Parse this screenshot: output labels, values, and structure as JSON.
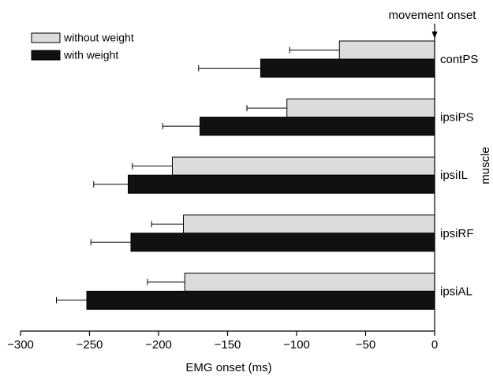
{
  "chart_data": {
    "type": "bar",
    "orientation": "horizontal",
    "categories": [
      "contPS",
      "ipsiPS",
      "ipsiIL",
      "ipsiRF",
      "ipsiAL"
    ],
    "series": [
      {
        "name": "without weight",
        "color": "#dcdcdc",
        "values": [
          -69,
          -107,
          -190,
          -182,
          -181
        ],
        "error": [
          36,
          29,
          29,
          23,
          27
        ]
      },
      {
        "name": "with weight",
        "color": "#111111",
        "values": [
          -126,
          -170,
          -222,
          -220,
          -252
        ],
        "error": [
          45,
          27,
          25,
          29,
          22
        ]
      }
    ],
    "xlabel": "EMG onset (ms)",
    "ylabel": "muscle",
    "xlim": [
      -300,
      0
    ],
    "xticks": [
      -300,
      -250,
      -200,
      -150,
      -100,
      -50,
      0
    ],
    "tick_labels": [
      "−300",
      "−250",
      "−200",
      "−150",
      "−100",
      "−50",
      "0"
    ],
    "annotation": "movement onset",
    "legend_position": "top-left",
    "grid": false
  }
}
